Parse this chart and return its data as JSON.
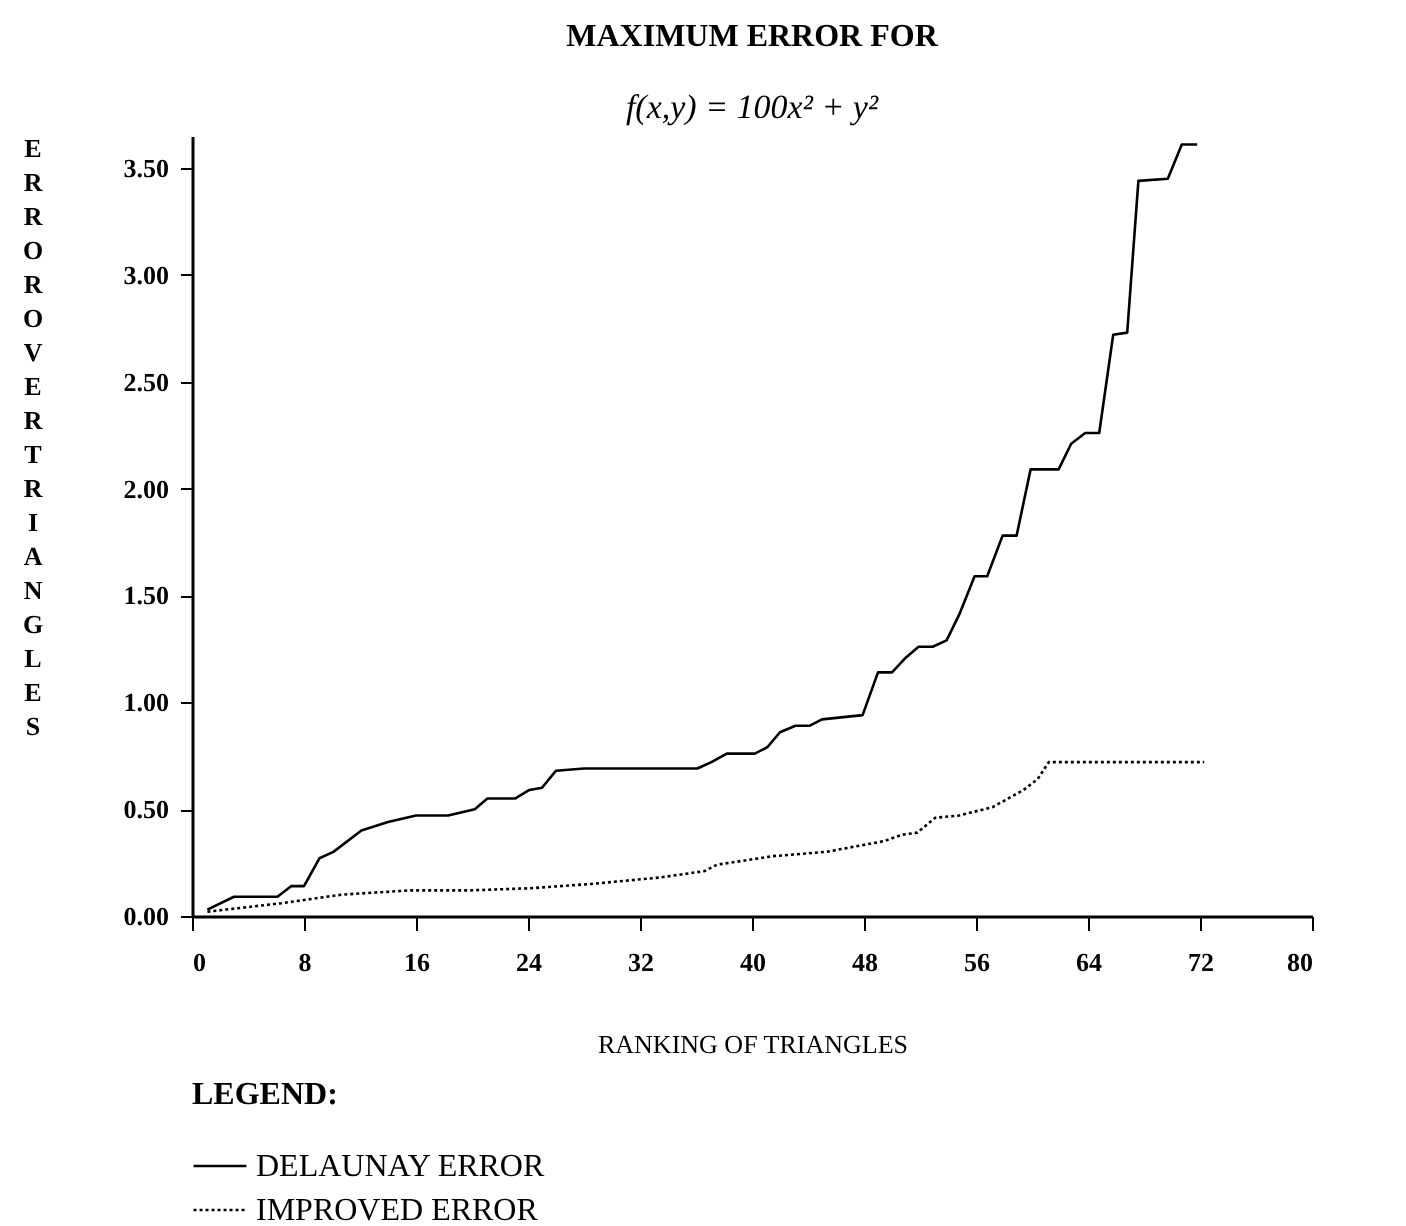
{
  "chart_data": {
    "type": "line",
    "title": "MAXIMUM ERROR FOR",
    "subtitle": "f(x,y) = 100x² + y²",
    "xlabel": "RANKING OF TRIANGLES",
    "ylabel": "ERROR OVER TRIANGLES",
    "legend_title": "LEGEND:",
    "legend": "bottom",
    "grid": false,
    "marker": "none",
    "xlim": [
      0,
      80
    ],
    "xticks": [
      0,
      8,
      16,
      24,
      32,
      40,
      48,
      56,
      64,
      72,
      80
    ],
    "ylim": [
      0,
      3.65
    ],
    "yticks": [
      {
        "value": 0,
        "label": "0.00"
      },
      {
        "value": 0.5,
        "label": "0.50"
      },
      {
        "value": 1,
        "label": "1.00"
      },
      {
        "value": 1.5,
        "label": "1.50"
      },
      {
        "value": 2,
        "label": "2.00"
      },
      {
        "value": 2.5,
        "label": "2.50"
      },
      {
        "value": 3,
        "label": "3.00"
      },
      {
        "value": 3.5,
        "label": "3.50"
      }
    ],
    "series": [
      {
        "name": "DELAUNAY ERROR",
        "color": "#000000",
        "line_style": "solid",
        "x": [
          1.1,
          3,
          6.1,
          7.1,
          8,
          9.1,
          10.1,
          12.1,
          14,
          16,
          18.3,
          20.2,
          21.1,
          23.1,
          24.1,
          25,
          26,
          28,
          36.1,
          37.1,
          38.2,
          40.2,
          41.1,
          42,
          43.1,
          44.1,
          45,
          47.9,
          49,
          50,
          51,
          51.9,
          52.9,
          53.9,
          54.8,
          55.9,
          56.8,
          57.9,
          58.9,
          59.9,
          61.9,
          62.8,
          63.8,
          64.8,
          65.8,
          66.8,
          67.6,
          69.7,
          70.7,
          71.8
        ],
        "values": [
          0.03,
          0.09,
          0.09,
          0.14,
          0.14,
          0.27,
          0.3,
          0.4,
          0.44,
          0.47,
          0.47,
          0.5,
          0.55,
          0.55,
          0.59,
          0.6,
          0.68,
          0.69,
          0.69,
          0.72,
          0.76,
          0.76,
          0.79,
          0.86,
          0.89,
          0.89,
          0.92,
          0.94,
          1.14,
          1.14,
          1.21,
          1.26,
          1.26,
          1.29,
          1.41,
          1.59,
          1.59,
          1.78,
          1.78,
          2.09,
          2.09,
          2.21,
          2.26,
          2.26,
          2.72,
          2.73,
          3.44,
          3.45,
          3.61,
          3.61
        ]
      },
      {
        "name": "IMPROVED ERROR",
        "color": "#000000",
        "line_style": "dotted",
        "x": [
          1.1,
          6.4,
          10.7,
          15.6,
          19.9,
          24.2,
          28.5,
          33.4,
          36.6,
          37.5,
          41.5,
          45.3,
          49.4,
          50.7,
          51.8,
          53.1,
          54.8,
          57.2,
          59.4,
          60.4,
          61.2,
          72.3
        ],
        "values": [
          0.02,
          0.06,
          0.1,
          0.12,
          0.12,
          0.13,
          0.15,
          0.18,
          0.21,
          0.24,
          0.28,
          0.3,
          0.35,
          0.38,
          0.39,
          0.46,
          0.47,
          0.51,
          0.59,
          0.64,
          0.72,
          0.72
        ]
      }
    ]
  }
}
